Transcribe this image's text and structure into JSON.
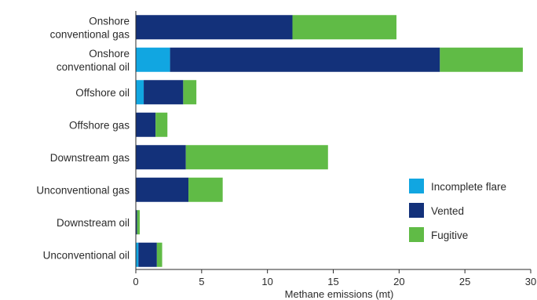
{
  "chart_data": {
    "type": "bar",
    "orientation": "horizontal",
    "stacked": true,
    "categories": [
      [
        "Onshore",
        "conventional gas"
      ],
      [
        "Onshore",
        "conventional oil"
      ],
      [
        "Offshore oil"
      ],
      [
        "Offshore gas"
      ],
      [
        "Downstream gas"
      ],
      [
        "Unconventional gas"
      ],
      [
        "Downstream oil"
      ],
      [
        "Unconventional oil"
      ]
    ],
    "series": [
      {
        "name": "Incomplete flare",
        "color": "#11a6e1",
        "values": [
          0,
          2.6,
          0.6,
          0,
          0,
          0,
          0,
          0.2
        ]
      },
      {
        "name": "Vented",
        "color": "#13317a",
        "values": [
          11.9,
          20.5,
          3.0,
          1.5,
          3.8,
          4.0,
          0.1,
          1.4
        ]
      },
      {
        "name": "Fugitive",
        "color": "#60bb46",
        "values": [
          7.9,
          6.3,
          1.0,
          0.9,
          10.8,
          2.6,
          0.2,
          0.4
        ]
      }
    ],
    "xlabel": "Methane emissions (mt)",
    "xlim": [
      0,
      30
    ],
    "xticks": [
      0,
      5,
      10,
      15,
      20,
      25,
      30
    ],
    "grid": false,
    "legend_position": "right"
  }
}
